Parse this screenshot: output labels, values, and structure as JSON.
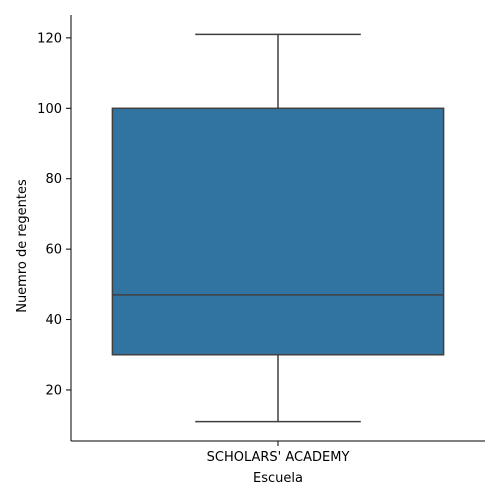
{
  "chart_data": {
    "type": "box",
    "title": "",
    "xlabel": "Escuela",
    "ylabel": "Nuemro de regentes",
    "categories": [
      "SCHOLARS' ACADEMY"
    ],
    "boxes": [
      {
        "category": "SCHOLARS' ACADEMY",
        "whisker_low": 11,
        "q1": 30,
        "median": 47,
        "q3": 100,
        "whisker_high": 121
      }
    ],
    "yticks": [
      20,
      40,
      60,
      80,
      100,
      120
    ],
    "ylim": [
      5.5,
      126.5
    ],
    "grid": false,
    "legend": "none"
  },
  "colors": {
    "box_fill": "#3274a1",
    "line": "#3f3f3f",
    "axis": "#000000"
  }
}
